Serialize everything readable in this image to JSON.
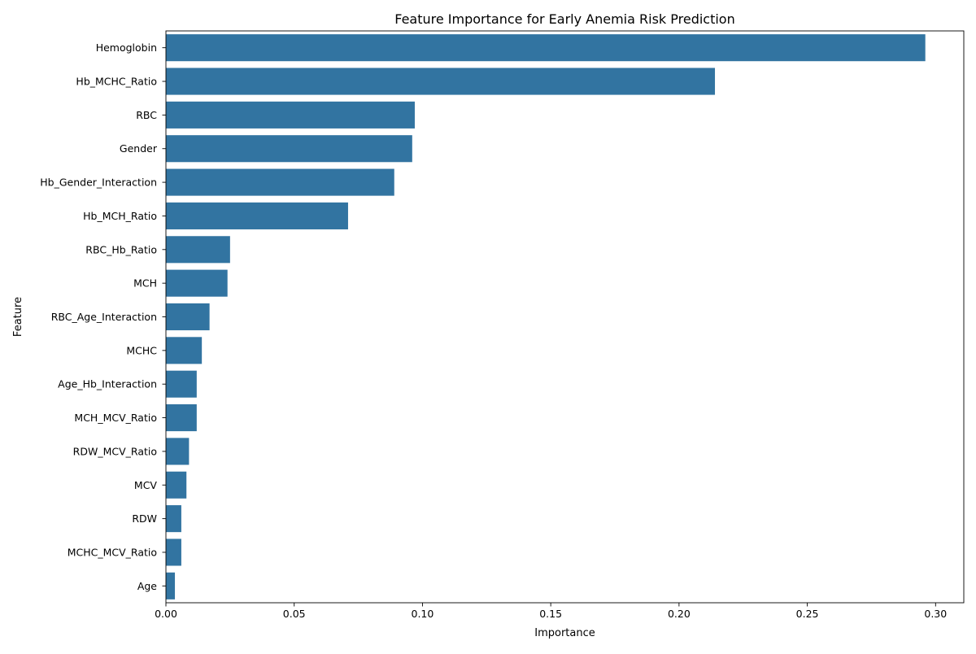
{
  "chart_data": {
    "type": "bar",
    "orientation": "horizontal",
    "title": "Feature Importance for Early Anemia Risk Prediction",
    "xlabel": "Importance",
    "ylabel": "Feature",
    "xlim": [
      0,
      0.311
    ],
    "xticks": [
      "0.00",
      "0.05",
      "0.10",
      "0.15",
      "0.20",
      "0.25",
      "0.30"
    ],
    "grid": false,
    "legend": "none",
    "bar_color": "#3274a1",
    "categories": [
      "Hemoglobin",
      "Hb_MCHC_Ratio",
      "RBC",
      "Gender",
      "Hb_Gender_Interaction",
      "Hb_MCH_Ratio",
      "RBC_Hb_Ratio",
      "MCH",
      "RBC_Age_Interaction",
      "MCHC",
      "Age_Hb_Interaction",
      "MCH_MCV_Ratio",
      "RDW_MCV_Ratio",
      "MCV",
      "RDW",
      "MCHC_MCV_Ratio",
      "Age"
    ],
    "values": [
      0.296,
      0.214,
      0.097,
      0.096,
      0.089,
      0.071,
      0.025,
      0.024,
      0.017,
      0.014,
      0.012,
      0.012,
      0.009,
      0.008,
      0.006,
      0.006,
      0.0035
    ]
  }
}
